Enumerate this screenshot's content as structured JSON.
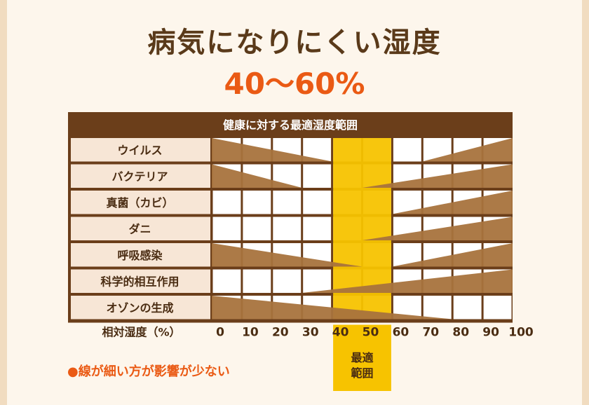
{
  "title": "病気になりにくい湿度",
  "subtitle": "40～60%",
  "note": "●線が細い方が影響が少ない",
  "colors": {
    "brown": "#6b3e1a",
    "wedge": "#a8733d",
    "highlight": "#f7c300",
    "label_bg": "#f7e6d6",
    "note": "#ea5a14"
  },
  "chart_data": {
    "type": "table",
    "title": "健康に対する最適湿度範囲",
    "xlabel": "相対湿度（%）",
    "xticks": [
      "0",
      "10",
      "20",
      "30",
      "40",
      "50",
      "60",
      "70",
      "80",
      "90",
      "100"
    ],
    "xlim": [
      0,
      100
    ],
    "optimal_range": [
      40,
      60
    ],
    "optimal_label": [
      "最適",
      "範囲"
    ],
    "rows": [
      {
        "label": "ウイルス",
        "low_end": 40,
        "high_start": 70
      },
      {
        "label": "バクテリア",
        "low_end": 30,
        "high_start": 50
      },
      {
        "label": "真菌（カビ）",
        "low_end": null,
        "high_start": 60
      },
      {
        "label": "ダニ",
        "low_end": null,
        "high_start": 50
      },
      {
        "label": "呼吸感染",
        "low_end": 50,
        "high_start": 60
      },
      {
        "label": "科学的相互作用",
        "low_end": null,
        "high_start": 30
      },
      {
        "label": "オゾンの生成",
        "low_end": 80,
        "high_start": null
      }
    ]
  }
}
